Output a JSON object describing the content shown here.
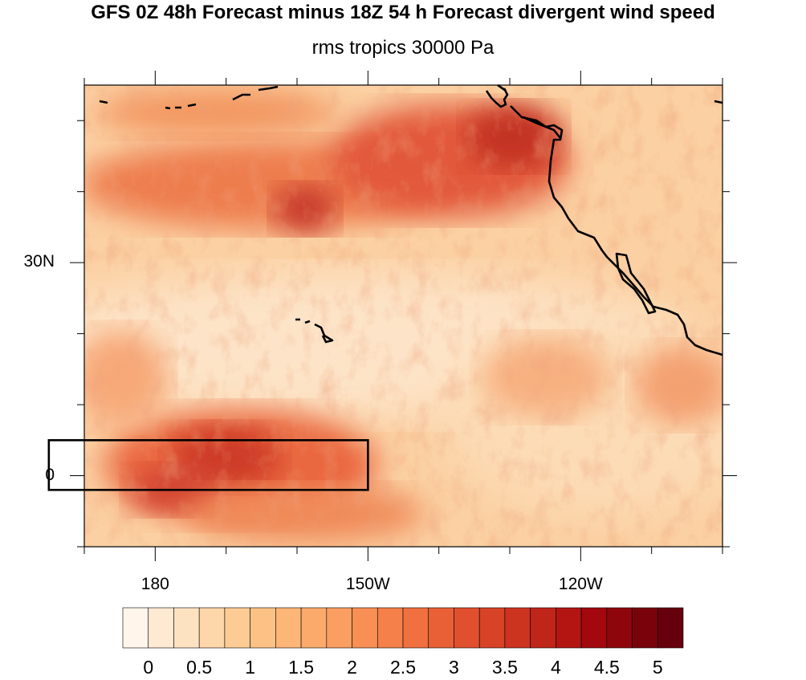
{
  "title": "GFS 0Z 48h Forecast minus 18Z 54 h Forecast divergent wind speed",
  "subtitle": "rms tropics 30000 Pa",
  "map": {
    "lat_labels": [
      {
        "lat": 30,
        "text": "30N"
      },
      {
        "lat": 0,
        "text": "0"
      }
    ],
    "lon_labels": [
      {
        "lon": 180,
        "text": "180"
      },
      {
        "lon": -150,
        "text": "150W"
      },
      {
        "lon": -120,
        "text": "120W"
      }
    ],
    "lon_range": [
      170,
      -100
    ],
    "lat_range": [
      -10,
      55
    ],
    "box": {
      "lon_min": 165,
      "lon_max": -150,
      "lat_min": -2,
      "lat_max": 5
    },
    "coastline_color": "#000000"
  },
  "colorbar": {
    "levels": [
      0,
      0.25,
      0.5,
      0.75,
      1,
      1.25,
      1.5,
      1.75,
      2,
      2.25,
      2.5,
      2.75,
      3,
      3.25,
      3.5,
      3.75,
      4,
      4.25,
      4.5,
      4.75,
      5,
      5.25
    ],
    "labels": [
      "0",
      "0.5",
      "1",
      "1.5",
      "2",
      "2.5",
      "3",
      "3.5",
      "4",
      "4.5",
      "5"
    ],
    "colors": [
      "#fff5eb",
      "#fee9d3",
      "#fde2c2",
      "#fdd6a9",
      "#fdcc94",
      "#fcc285",
      "#fcb678",
      "#fbaa6c",
      "#fa9e62",
      "#f88f55",
      "#f5804a",
      "#f07040",
      "#e96036",
      "#e1502e",
      "#d84227",
      "#cd3420",
      "#c0251a",
      "#b31513",
      "#a2080e",
      "#8f050c",
      "#7a030b",
      "#67000d"
    ]
  }
}
